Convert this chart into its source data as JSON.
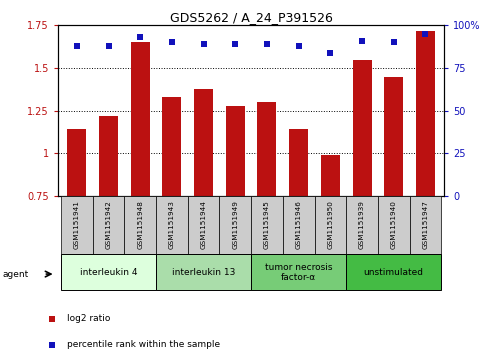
{
  "title": "GDS5262 / A_24_P391526",
  "samples": [
    "GSM1151941",
    "GSM1151942",
    "GSM1151948",
    "GSM1151943",
    "GSM1151944",
    "GSM1151949",
    "GSM1151945",
    "GSM1151946",
    "GSM1151950",
    "GSM1151939",
    "GSM1151940",
    "GSM1151947"
  ],
  "log2_ratios": [
    1.14,
    1.22,
    1.65,
    1.33,
    1.38,
    1.28,
    1.3,
    1.14,
    0.99,
    1.55,
    1.45,
    1.72
  ],
  "percentile_ranks": [
    88,
    88,
    93,
    90,
    89,
    89,
    89,
    88,
    84,
    91,
    90,
    95
  ],
  "ylim_left": [
    0.75,
    1.75
  ],
  "ylim_right": [
    0,
    100
  ],
  "yticks_left": [
    0.75,
    1.0,
    1.25,
    1.5,
    1.75
  ],
  "yticks_right": [
    0,
    25,
    50,
    75,
    100
  ],
  "ytick_labels_left": [
    "0.75",
    "1",
    "1.25",
    "1.5",
    "1.75"
  ],
  "ytick_labels_right": [
    "0",
    "25",
    "50",
    "75",
    "100%"
  ],
  "bar_color": "#bb1111",
  "dot_color": "#1111bb",
  "agent_groups": [
    {
      "label": "interleukin 4",
      "indices": [
        0,
        1,
        2
      ],
      "color": "#ddffdd"
    },
    {
      "label": "interleukin 13",
      "indices": [
        3,
        4,
        5
      ],
      "color": "#aaddaa"
    },
    {
      "label": "tumor necrosis\nfactor-α",
      "indices": [
        6,
        7,
        8
      ],
      "color": "#77cc77"
    },
    {
      "label": "unstimulated",
      "indices": [
        9,
        10,
        11
      ],
      "color": "#44bb44"
    }
  ],
  "background_color": "#ffffff",
  "sample_bg_color": "#cccccc",
  "bar_width": 0.6
}
